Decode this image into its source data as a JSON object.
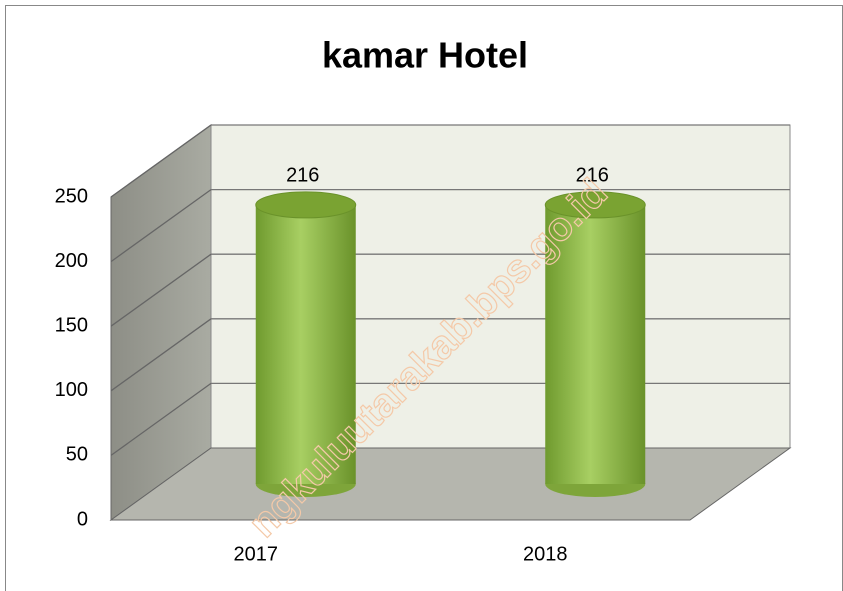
{
  "chart_data": {
    "type": "bar",
    "title": "kamar Hotel",
    "categories": [
      "2017",
      "2018"
    ],
    "values": [
      216,
      216
    ],
    "color": "#8fb84a",
    "ylim": [
      0,
      250
    ],
    "yticks": [
      0,
      50,
      100,
      150,
      200,
      250
    ],
    "grid": true,
    "watermark": "ngkuluutarakab.bps.go.id"
  }
}
